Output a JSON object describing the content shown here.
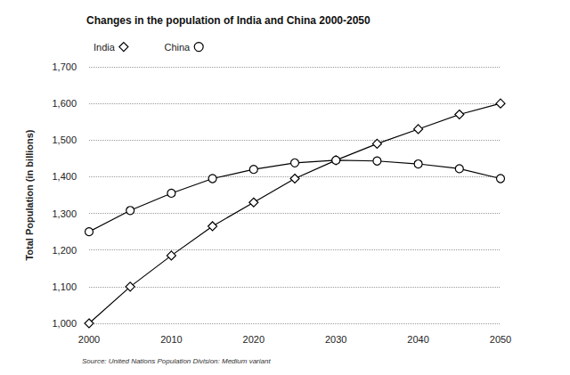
{
  "chart_data": {
    "type": "line",
    "title": "Changes in the population of India and China 2000-2050",
    "y_label": "Total Population (in billions)",
    "source": "Source: United Nations Population Division: Medium variant",
    "x": [
      2000,
      2005,
      2010,
      2015,
      2020,
      2025,
      2030,
      2035,
      2040,
      2045,
      2050
    ],
    "series": [
      {
        "name": "India",
        "color": "#000000",
        "marker": "diamond",
        "line_style": "solid",
        "values": [
          1000,
          1100,
          1185,
          1265,
          1330,
          1395,
          1445,
          1490,
          1530,
          1570,
          1600
        ]
      },
      {
        "name": "China",
        "color": "#000000",
        "marker": "circle",
        "line_style": "solid",
        "values": [
          1250,
          1308,
          1355,
          1395,
          1420,
          1438,
          1445,
          1443,
          1435,
          1422,
          1395
        ]
      }
    ],
    "xlim": [
      2000,
      2050
    ],
    "xticks": [
      2000,
      2010,
      2020,
      2030,
      2040,
      2050
    ],
    "ylim": [
      1000,
      1700
    ],
    "yticks": [
      {
        "value": 1000,
        "label": "1,000"
      },
      {
        "value": 1100,
        "label": "1,100"
      },
      {
        "value": 1200,
        "label": "1,200"
      },
      {
        "value": 1300,
        "label": "1,300"
      },
      {
        "value": 1400,
        "label": "1,400"
      },
      {
        "value": 1500,
        "label": "1,500"
      },
      {
        "value": 1600,
        "label": "1,600"
      },
      {
        "value": 1700,
        "label": "1,700"
      }
    ],
    "grid": true,
    "legend": "top-left"
  }
}
